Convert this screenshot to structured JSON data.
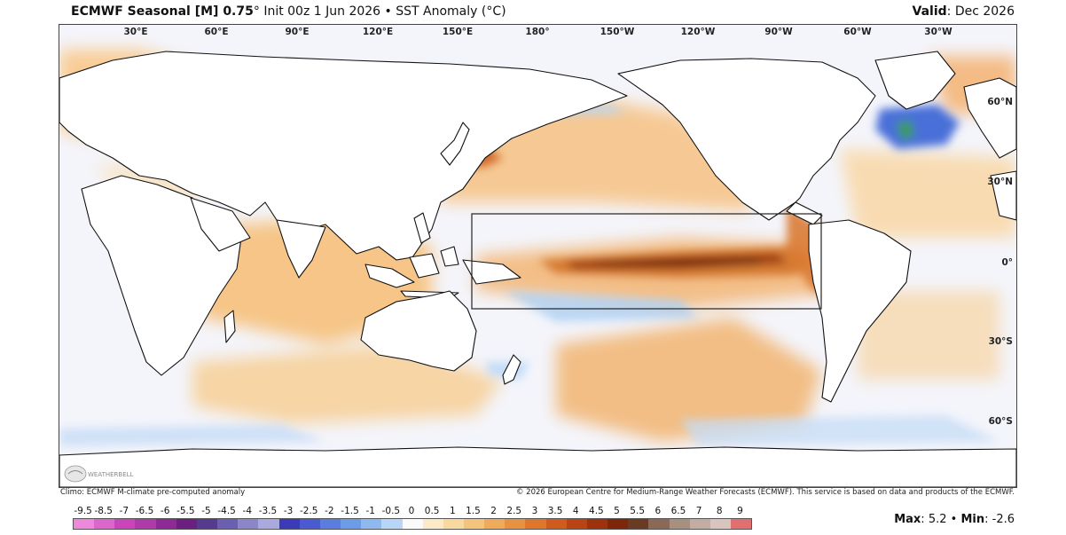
{
  "header": {
    "model": "ECMWF Seasonal [M] 0.75",
    "degree_symbol": "°",
    "init": "Init 00z 1 Jun 2026",
    "separator": "•",
    "variable": "SST Anomaly (°C)",
    "valid_label": "Valid",
    "valid_value": "Dec 2026"
  },
  "map": {
    "longitude_labels": [
      "30°E",
      "60°E",
      "90°E",
      "120°E",
      "150°E",
      "180°",
      "150°W",
      "120°W",
      "90°W",
      "60°W",
      "30°W"
    ],
    "latitude_labels": [
      "60°N",
      "30°N",
      "0°",
      "30°S",
      "60°S"
    ],
    "logo_text": "WEATHERBELL",
    "highlight_box": "Niño region box",
    "colors": {
      "ocean_neutral": "#f4f5fb",
      "land": "#ffffff",
      "coast": "#111111"
    }
  },
  "footer": {
    "left": "Climo: ECMWF M-climate pre-computed anomaly",
    "right": "© 2026 European Centre for Medium-Range Weather Forecasts (ECMWF). This service is based on data and products of the ECMWF."
  },
  "legend": {
    "labels": [
      "-9.5",
      "-8.5",
      "-7",
      "-6.5",
      "-6",
      "-5.5",
      "-5",
      "-4.5",
      "-4",
      "-3.5",
      "-3",
      "-2.5",
      "-2",
      "-1.5",
      "-1",
      "-0.5",
      "0",
      "0.5",
      "1",
      "1.5",
      "2",
      "2.5",
      "3",
      "3.5",
      "4",
      "4.5",
      "5",
      "5.5",
      "6",
      "6.5",
      "7",
      "8",
      "9"
    ],
    "colors": [
      "#ee88dd",
      "#dd66cc",
      "#cc44bb",
      "#b03aa8",
      "#8d2a96",
      "#6b2080",
      "#553a8f",
      "#6a5fb0",
      "#8a86c8",
      "#a9a9dd",
      "#3b3bb8",
      "#4a5ad0",
      "#5a7ee0",
      "#6c9be8",
      "#8fbaf0",
      "#b8d6f8",
      "#fafafa",
      "#fbe9c8",
      "#f8d9a0",
      "#f5c47c",
      "#f0ab5a",
      "#e89140",
      "#de762c",
      "#cf5c1c",
      "#b94312",
      "#9e320c",
      "#7e2609",
      "#6b3a22",
      "#8a6a56",
      "#a89080",
      "#c3ada2",
      "#d9c5bd",
      "#e07070"
    ]
  },
  "stats": {
    "max_label": "Max",
    "max_value": "5.2",
    "min_label": "Min",
    "min_value": "-2.6"
  }
}
